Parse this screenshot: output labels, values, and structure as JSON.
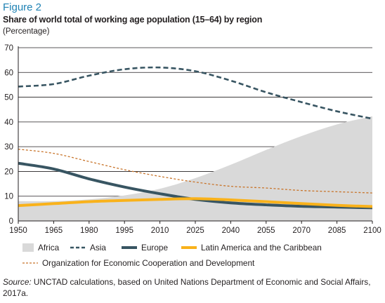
{
  "figure_label": "Figure 2",
  "title": "Share of world total of working age population (15–64) by region",
  "unit_label": "(Percentage)",
  "legend": {
    "africa": "Africa",
    "asia": "Asia",
    "europe": "Europe",
    "latam": "Latin America and the Caribbean",
    "oecd": "Organization for Economic Cooperation and Development"
  },
  "source": {
    "prefix": "Source:",
    "text": " UNCTAD calculations, based on United Nations Department of Economic and Social Affairs, 2017a."
  },
  "colors": {
    "africa": "#d9d9d9",
    "asia": "#385562",
    "europe": "#385562",
    "latam": "#f9b21b",
    "oecd": "#c8742a"
  },
  "chart_data": {
    "type": "line",
    "x_ticks": [
      1950,
      1965,
      1980,
      1995,
      2010,
      2025,
      2040,
      2055,
      2070,
      2085,
      2100
    ],
    "y_ticks": [
      0,
      10,
      20,
      30,
      40,
      50,
      60,
      70
    ],
    "xlim": [
      1950,
      2100
    ],
    "ylim": [
      0,
      70
    ],
    "grid": "horizontal",
    "legend_position": "bottom",
    "series": [
      {
        "key": "africa",
        "name": "Africa",
        "style": "area",
        "x": [
          1950,
          1965,
          1980,
          1995,
          2010,
          2025,
          2040,
          2055,
          2070,
          2085,
          2100
        ],
        "values": [
          8.0,
          8.0,
          8.7,
          10.3,
          13.0,
          17.3,
          22.7,
          28.7,
          34.3,
          39.0,
          42.3
        ]
      },
      {
        "key": "asia",
        "name": "Asia",
        "style": "dashed",
        "x": [
          1950,
          1965,
          1980,
          1995,
          2010,
          2025,
          2040,
          2055,
          2070,
          2085,
          2100
        ],
        "values": [
          54.3,
          55.3,
          58.7,
          61.3,
          62.0,
          60.5,
          56.7,
          52.0,
          48.0,
          44.3,
          41.3
        ]
      },
      {
        "key": "europe",
        "name": "Europe",
        "style": "solid-thick",
        "x": [
          1950,
          1965,
          1980,
          1995,
          2010,
          2025,
          2040,
          2055,
          2070,
          2085,
          2100
        ],
        "values": [
          23.3,
          21.0,
          17.0,
          13.7,
          11.0,
          8.7,
          7.3,
          6.5,
          5.9,
          5.6,
          5.3
        ]
      },
      {
        "key": "latam",
        "name": "Latin America and the Caribbean",
        "style": "solid-thick",
        "x": [
          1950,
          1965,
          1980,
          1995,
          2010,
          2025,
          2040,
          2055,
          2070,
          2085,
          2100
        ],
        "values": [
          6.2,
          7.0,
          7.8,
          8.3,
          8.7,
          9.0,
          8.5,
          7.8,
          7.0,
          6.3,
          5.8
        ]
      },
      {
        "key": "oecd",
        "name": "Organization for Economic Cooperation and Development",
        "style": "dashed-thin",
        "x": [
          1950,
          1965,
          1980,
          1995,
          2010,
          2025,
          2040,
          2055,
          2070,
          2085,
          2100
        ],
        "values": [
          29.0,
          27.3,
          24.0,
          20.7,
          18.0,
          15.7,
          14.0,
          13.3,
          12.3,
          11.8,
          11.3
        ]
      }
    ]
  }
}
